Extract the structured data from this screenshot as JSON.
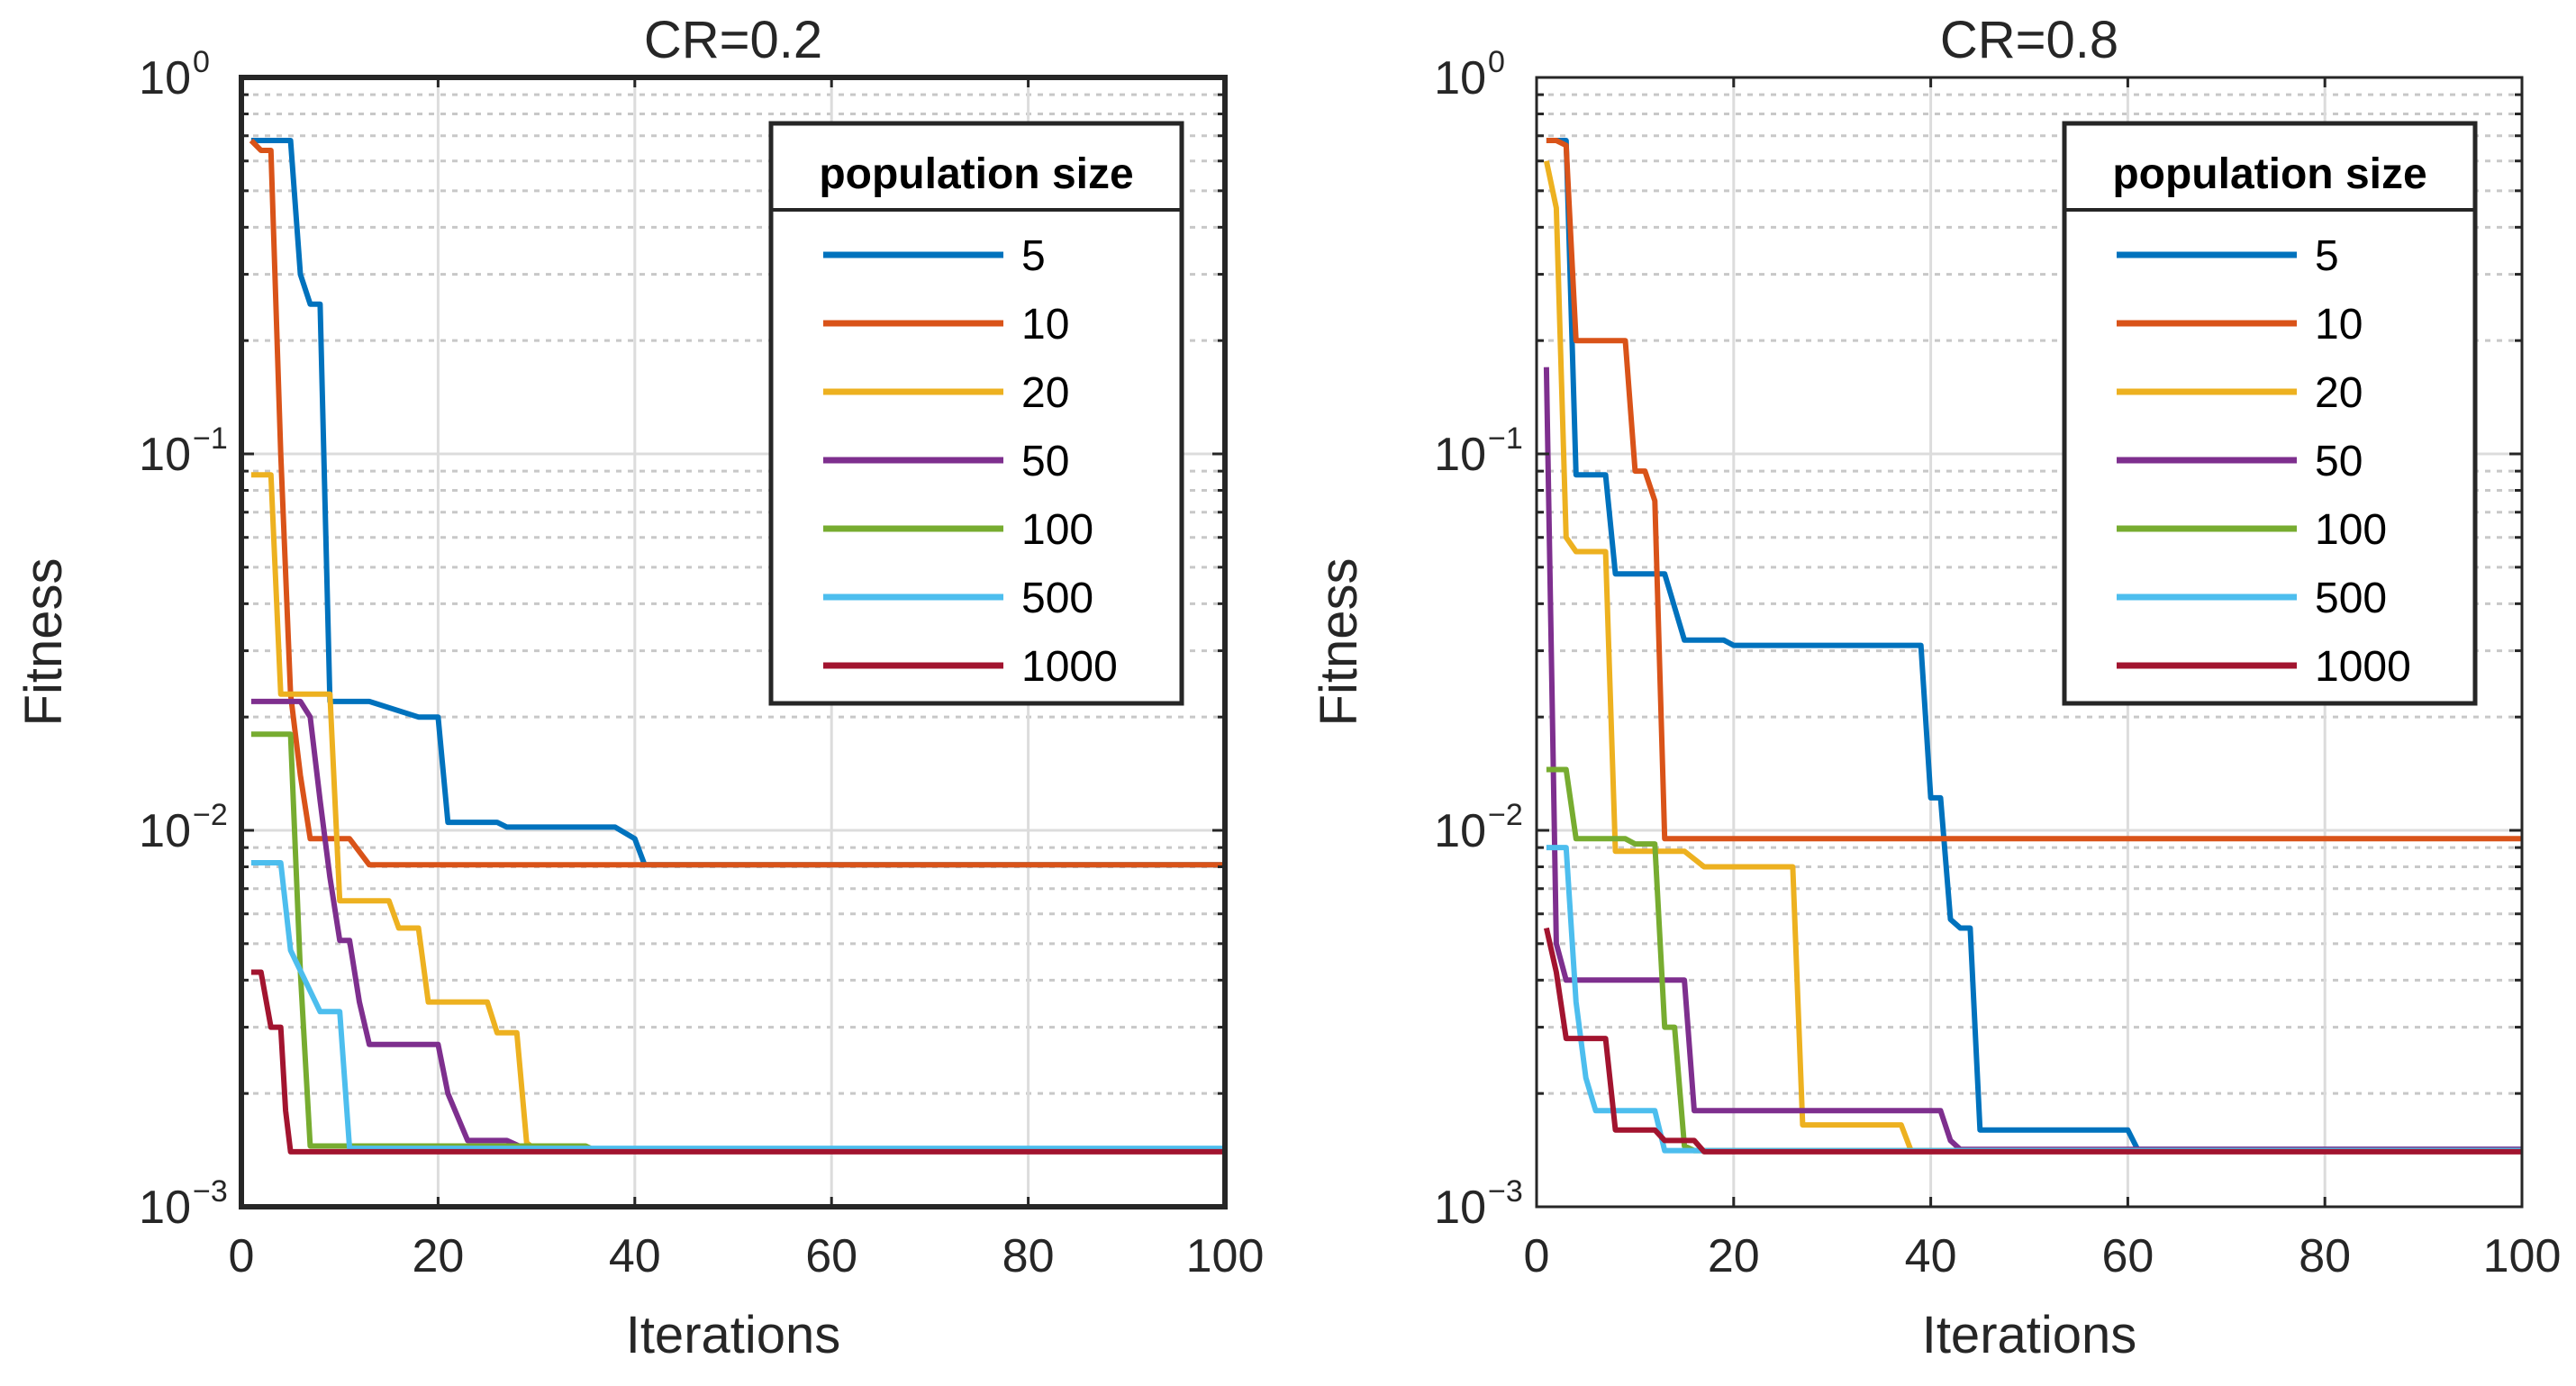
{
  "chart_data": [
    {
      "type": "line",
      "title": "CR=0.2",
      "xlabel": "Iterations",
      "ylabel": "Fitness",
      "xlim": [
        0,
        100
      ],
      "ylim": [
        0.001,
        1
      ],
      "yscale": "log",
      "xticks": [
        "0",
        "20",
        "40",
        "60",
        "80",
        "100"
      ],
      "yticks": [
        {
          "base": "10",
          "exp": "0"
        },
        {
          "base": "10",
          "exp": "−1"
        },
        {
          "base": "10",
          "exp": "−2"
        },
        {
          "base": "10",
          "exp": "−3"
        }
      ],
      "grid": true,
      "legend": {
        "title": "population size",
        "location": "top-right"
      },
      "series": [
        {
          "name": "5",
          "color": "#0072BD",
          "points": [
            [
              1,
              0.68
            ],
            [
              5,
              0.68
            ],
            [
              6,
              0.3
            ],
            [
              7,
              0.25
            ],
            [
              8,
              0.25
            ],
            [
              9,
              0.022
            ],
            [
              12,
              0.022
            ],
            [
              13,
              0.022
            ],
            [
              18,
              0.02
            ],
            [
              20,
              0.02
            ],
            [
              21,
              0.0105
            ],
            [
              26,
              0.0105
            ],
            [
              27,
              0.0102
            ],
            [
              38,
              0.0102
            ],
            [
              40,
              0.0095
            ],
            [
              41,
              0.0081
            ],
            [
              100,
              0.0081
            ]
          ]
        },
        {
          "name": "10",
          "color": "#D95319",
          "points": [
            [
              1,
              0.68
            ],
            [
              2,
              0.64
            ],
            [
              3,
              0.64
            ],
            [
              4,
              0.1
            ],
            [
              5,
              0.023
            ],
            [
              6,
              0.014
            ],
            [
              7,
              0.0095
            ],
            [
              11,
              0.0095
            ],
            [
              13,
              0.0081
            ],
            [
              100,
              0.0081
            ]
          ]
        },
        {
          "name": "20",
          "color": "#EDB120",
          "points": [
            [
              1,
              0.088
            ],
            [
              3,
              0.088
            ],
            [
              4,
              0.023
            ],
            [
              9,
              0.023
            ],
            [
              10,
              0.0065
            ],
            [
              15,
              0.0065
            ],
            [
              16,
              0.0055
            ],
            [
              18,
              0.0055
            ],
            [
              19,
              0.0035
            ],
            [
              25,
              0.0035
            ],
            [
              26,
              0.0029
            ],
            [
              28,
              0.0029
            ],
            [
              29,
              0.00148
            ],
            [
              30,
              0.00141
            ],
            [
              100,
              0.00141
            ]
          ]
        },
        {
          "name": "50",
          "color": "#7E2F8E",
          "points": [
            [
              1,
              0.022
            ],
            [
              6,
              0.022
            ],
            [
              7,
              0.02
            ],
            [
              8,
              0.012
            ],
            [
              9,
              0.0075
            ],
            [
              10,
              0.0051
            ],
            [
              11,
              0.0051
            ],
            [
              12,
              0.0035
            ],
            [
              13,
              0.0027
            ],
            [
              20,
              0.0027
            ],
            [
              21,
              0.002
            ],
            [
              23,
              0.0015
            ],
            [
              27,
              0.0015
            ],
            [
              29,
              0.00142
            ],
            [
              100,
              0.00142
            ]
          ]
        },
        {
          "name": "100",
          "color": "#77AC30",
          "points": [
            [
              1,
              0.018
            ],
            [
              5,
              0.018
            ],
            [
              6,
              0.0042
            ],
            [
              7,
              0.00145
            ],
            [
              35,
              0.00145
            ],
            [
              36,
              0.00141
            ],
            [
              100,
              0.00141
            ]
          ]
        },
        {
          "name": "500",
          "color": "#4DBEEE",
          "points": [
            [
              1,
              0.0082
            ],
            [
              4,
              0.0082
            ],
            [
              5,
              0.0048
            ],
            [
              8,
              0.0033
            ],
            [
              10,
              0.0033
            ],
            [
              11,
              0.00143
            ],
            [
              100,
              0.00143
            ]
          ]
        },
        {
          "name": "1000",
          "color": "#A2142F",
          "points": [
            [
              1,
              0.0042
            ],
            [
              2,
              0.0042
            ],
            [
              3,
              0.003
            ],
            [
              4,
              0.003
            ],
            [
              4.5,
              0.0018
            ],
            [
              5,
              0.0014
            ],
            [
              100,
              0.0014
            ]
          ]
        }
      ]
    },
    {
      "type": "line",
      "title": "CR=0.8",
      "xlabel": "Iterations",
      "ylabel": "Fitness",
      "xlim": [
        0,
        100
      ],
      "ylim": [
        0.001,
        1
      ],
      "yscale": "log",
      "xticks": [
        "0",
        "20",
        "40",
        "60",
        "80",
        "100"
      ],
      "yticks": [
        {
          "base": "10",
          "exp": "0"
        },
        {
          "base": "10",
          "exp": "−1"
        },
        {
          "base": "10",
          "exp": "−2"
        },
        {
          "base": "10",
          "exp": "−3"
        }
      ],
      "grid": true,
      "legend": {
        "title": "population size",
        "location": "top-right"
      },
      "series": [
        {
          "name": "5",
          "color": "#0072BD",
          "points": [
            [
              1,
              0.68
            ],
            [
              3,
              0.68
            ],
            [
              4,
              0.088
            ],
            [
              7,
              0.088
            ],
            [
              8,
              0.048
            ],
            [
              13,
              0.048
            ],
            [
              15,
              0.032
            ],
            [
              19,
              0.032
            ],
            [
              20,
              0.031
            ],
            [
              39,
              0.031
            ],
            [
              40,
              0.0122
            ],
            [
              41,
              0.0122
            ],
            [
              42,
              0.0058
            ],
            [
              43,
              0.0055
            ],
            [
              44,
              0.0055
            ],
            [
              45,
              0.0016
            ],
            [
              60,
              0.0016
            ],
            [
              61,
              0.00142
            ],
            [
              100,
              0.00142
            ]
          ]
        },
        {
          "name": "10",
          "color": "#D95319",
          "points": [
            [
              1,
              0.68
            ],
            [
              2,
              0.68
            ],
            [
              3,
              0.66
            ],
            [
              4,
              0.2
            ],
            [
              9,
              0.2
            ],
            [
              10,
              0.09
            ],
            [
              11,
              0.09
            ],
            [
              12,
              0.075
            ],
            [
              13,
              0.0095
            ],
            [
              100,
              0.0095
            ]
          ]
        },
        {
          "name": "20",
          "color": "#EDB120",
          "points": [
            [
              1,
              0.6
            ],
            [
              2,
              0.45
            ],
            [
              3,
              0.06
            ],
            [
              4,
              0.055
            ],
            [
              7,
              0.055
            ],
            [
              8,
              0.0088
            ],
            [
              15,
              0.0088
            ],
            [
              17,
              0.008
            ],
            [
              26,
              0.008
            ],
            [
              27,
              0.00165
            ],
            [
              37,
              0.00165
            ],
            [
              38,
              0.00141
            ],
            [
              100,
              0.00141
            ]
          ]
        },
        {
          "name": "50",
          "color": "#7E2F8E",
          "points": [
            [
              1,
              0.17
            ],
            [
              2,
              0.005
            ],
            [
              3,
              0.004
            ],
            [
              15,
              0.004
            ],
            [
              16,
              0.0018
            ],
            [
              41,
              0.0018
            ],
            [
              42,
              0.0015
            ],
            [
              43,
              0.00142
            ],
            [
              100,
              0.00142
            ]
          ]
        },
        {
          "name": "100",
          "color": "#77AC30",
          "points": [
            [
              1,
              0.0145
            ],
            [
              3,
              0.0145
            ],
            [
              4,
              0.0095
            ],
            [
              9,
              0.0095
            ],
            [
              10,
              0.0092
            ],
            [
              12,
              0.0092
            ],
            [
              13,
              0.003
            ],
            [
              14,
              0.003
            ],
            [
              15,
              0.00145
            ],
            [
              16,
              0.00141
            ],
            [
              100,
              0.00141
            ]
          ]
        },
        {
          "name": "500",
          "color": "#4DBEEE",
          "points": [
            [
              1,
              0.009
            ],
            [
              3,
              0.009
            ],
            [
              4,
              0.0035
            ],
            [
              5,
              0.0022
            ],
            [
              6,
              0.0018
            ],
            [
              12,
              0.0018
            ],
            [
              13,
              0.00141
            ],
            [
              100,
              0.00141
            ]
          ]
        },
        {
          "name": "1000",
          "color": "#A2142F",
          "points": [
            [
              1,
              0.0055
            ],
            [
              2,
              0.0042
            ],
            [
              3,
              0.0028
            ],
            [
              7,
              0.0028
            ],
            [
              8,
              0.0016
            ],
            [
              12,
              0.0016
            ],
            [
              13,
              0.0015
            ],
            [
              16,
              0.0015
            ],
            [
              17,
              0.0014
            ],
            [
              100,
              0.0014
            ]
          ]
        }
      ]
    }
  ]
}
